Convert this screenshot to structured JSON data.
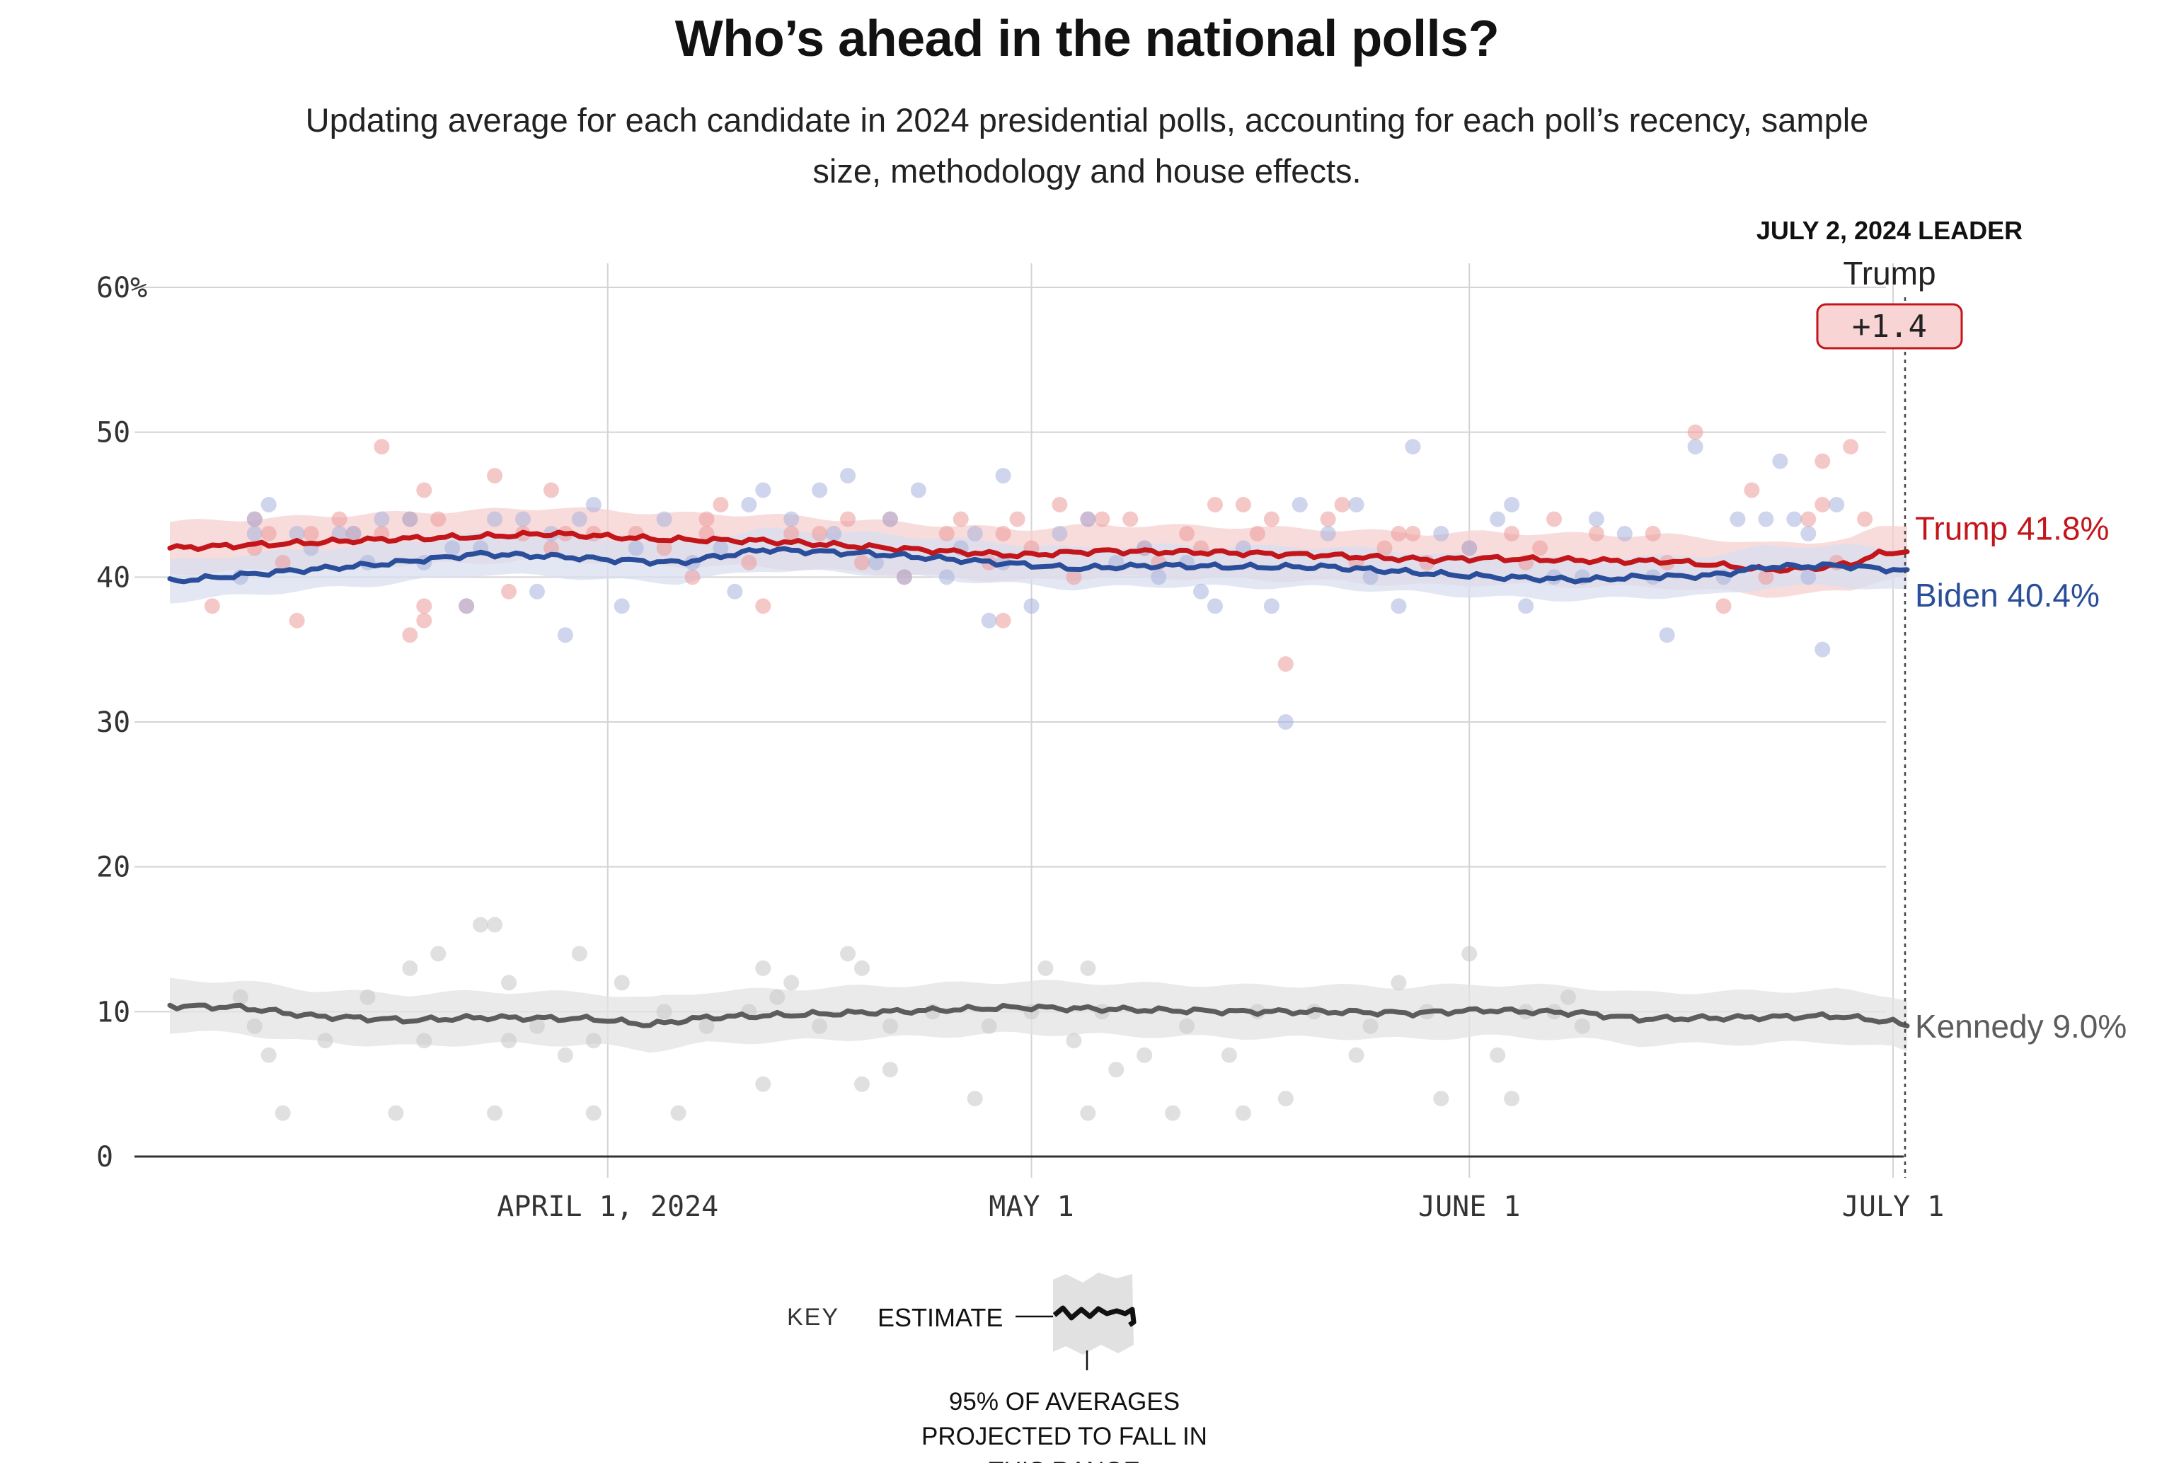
{
  "title": "Who’s ahead in the national polls?",
  "subtitle": "Updating average for each candidate in 2024 presidential polls, accounting for each poll’s recency, sample size, methodology and house effects.",
  "leader": {
    "heading": "JULY 2, 2024 LEADER",
    "name": "Trump",
    "margin": "+1.4",
    "color": "#c3161b"
  },
  "key": {
    "key_label": "KEY",
    "estimate_label": "ESTIMATE",
    "range_label_lines": [
      "95% OF AVERAGES",
      "PROJECTED TO FALL IN",
      "THIS RANGE"
    ]
  },
  "chart_data": {
    "type": "line",
    "title": "Who’s ahead in the national polls?",
    "ylim": [
      0,
      60
    ],
    "y_ticks": [
      0,
      10,
      20,
      30,
      40,
      50,
      60
    ],
    "y_tick_labels": [
      "0",
      "10",
      "20",
      "30",
      "40",
      "50",
      "60%"
    ],
    "x_start": "2024-03-01",
    "x_end": "2024-07-02",
    "x_ticks": [
      {
        "date": "2024-04-01",
        "label": "APRIL 1, 2024"
      },
      {
        "date": "2024-05-01",
        "label": "MAY 1"
      },
      {
        "date": "2024-06-01",
        "label": "JUNE 1"
      },
      {
        "date": "2024-07-01",
        "label": "JULY 1"
      }
    ],
    "series": [
      {
        "name": "Trump",
        "end_label": "Trump 41.8%",
        "color": "#c3161b",
        "band_color": "#f6d0d0",
        "dot_color": "#ec9a9a",
        "band_halfwidth": 1.8,
        "x_days": [
          0,
          8,
          15,
          22,
          27,
          35,
          42,
          51,
          60,
          66,
          74,
          82,
          89,
          93,
          98,
          103,
          106,
          110,
          113,
          116,
          119,
          121,
          123
        ],
        "values": [
          42.0,
          42.3,
          42.6,
          42.8,
          43.0,
          42.6,
          42.5,
          42.0,
          41.5,
          41.8,
          41.7,
          41.5,
          41.2,
          41.3,
          41.2,
          41.1,
          41.1,
          40.8,
          40.5,
          40.6,
          40.9,
          41.6,
          41.8
        ],
        "polls": [
          [
            34,
            38
          ],
          [
            37,
            44
          ],
          [
            37,
            42
          ],
          [
            38,
            43
          ],
          [
            39,
            41
          ],
          [
            40,
            37
          ],
          [
            41,
            43
          ],
          [
            43,
            44
          ],
          [
            44,
            43
          ],
          [
            46,
            43
          ],
          [
            46,
            49
          ],
          [
            48,
            36
          ],
          [
            48,
            44
          ],
          [
            49,
            46
          ],
          [
            49,
            38
          ],
          [
            49,
            37
          ],
          [
            50,
            44
          ],
          [
            52,
            38
          ],
          [
            54,
            47
          ],
          [
            55,
            39
          ],
          [
            56,
            43
          ],
          [
            58,
            46
          ],
          [
            58,
            42
          ],
          [
            59,
            43
          ],
          [
            61,
            43
          ],
          [
            64,
            43
          ],
          [
            66,
            42
          ],
          [
            68,
            40
          ],
          [
            69,
            44
          ],
          [
            69,
            43
          ],
          [
            70,
            45
          ],
          [
            72,
            41
          ],
          [
            73,
            38
          ],
          [
            75,
            43
          ],
          [
            77,
            43
          ],
          [
            79,
            44
          ],
          [
            80,
            41
          ],
          [
            82,
            44
          ],
          [
            83,
            40
          ],
          [
            86,
            43
          ],
          [
            87,
            44
          ],
          [
            89,
            41
          ],
          [
            90,
            43
          ],
          [
            90,
            37
          ],
          [
            91,
            44
          ],
          [
            92,
            42
          ],
          [
            94,
            45
          ],
          [
            95,
            40
          ],
          [
            96,
            44
          ],
          [
            97,
            44
          ],
          [
            99,
            44
          ],
          [
            100,
            42
          ],
          [
            101,
            41
          ],
          [
            103,
            43
          ],
          [
            104,
            42
          ],
          [
            105,
            45
          ],
          [
            107,
            45
          ],
          [
            108,
            43
          ],
          [
            109,
            44
          ],
          [
            110,
            34
          ],
          [
            113,
            44
          ],
          [
            114,
            45
          ],
          [
            115,
            41
          ],
          [
            117,
            42
          ],
          [
            118,
            43
          ],
          [
            119,
            43
          ],
          [
            120,
            41
          ],
          [
            123,
            42
          ],
          [
            126,
            43
          ],
          [
            127,
            41
          ],
          [
            128,
            42
          ],
          [
            129,
            44
          ],
          [
            132,
            43
          ],
          [
            136,
            43
          ],
          [
            137,
            41
          ],
          [
            139,
            50
          ],
          [
            141,
            38
          ],
          [
            143,
            46
          ],
          [
            144,
            40
          ],
          [
            147,
            44
          ],
          [
            148,
            48
          ],
          [
            148,
            45
          ],
          [
            149,
            41
          ],
          [
            150,
            49
          ],
          [
            151,
            44
          ]
        ]
      },
      {
        "name": "Biden",
        "end_label": "Biden 40.4%",
        "color": "#2a4e9a",
        "band_color": "#d9dff0",
        "dot_color": "#a7b3dc",
        "band_halfwidth": 1.4,
        "x_days": [
          0,
          7,
          15,
          22,
          25,
          28,
          31,
          36,
          42,
          50,
          57,
          60,
          64,
          70,
          76,
          82,
          90,
          94,
          100,
          104,
          109,
          113,
          118,
          121,
          123
        ],
        "values": [
          39.7,
          40.3,
          40.9,
          41.6,
          41.5,
          41.4,
          41.2,
          41.0,
          41.9,
          41.6,
          41.1,
          40.9,
          40.6,
          40.8,
          40.7,
          40.7,
          40.2,
          40.0,
          39.8,
          40.0,
          40.1,
          40.7,
          40.8,
          40.6,
          40.4
        ],
        "polls": [
          [
            36,
            40
          ],
          [
            37,
            44
          ],
          [
            37,
            43
          ],
          [
            38,
            45
          ],
          [
            40,
            43
          ],
          [
            41,
            42
          ],
          [
            43,
            43
          ],
          [
            44,
            43
          ],
          [
            45,
            41
          ],
          [
            46,
            44
          ],
          [
            48,
            44
          ],
          [
            49,
            41
          ],
          [
            51,
            42
          ],
          [
            52,
            38
          ],
          [
            53,
            42
          ],
          [
            54,
            44
          ],
          [
            56,
            44
          ],
          [
            57,
            39
          ],
          [
            58,
            43
          ],
          [
            59,
            36
          ],
          [
            60,
            44
          ],
          [
            61,
            45
          ],
          [
            63,
            38
          ],
          [
            64,
            42
          ],
          [
            66,
            44
          ],
          [
            68,
            41
          ],
          [
            70,
            42
          ],
          [
            71,
            39
          ],
          [
            72,
            45
          ],
          [
            73,
            46
          ],
          [
            75,
            44
          ],
          [
            77,
            46
          ],
          [
            78,
            43
          ],
          [
            79,
            47
          ],
          [
            81,
            41
          ],
          [
            82,
            44
          ],
          [
            83,
            40
          ],
          [
            84,
            46
          ],
          [
            86,
            40
          ],
          [
            87,
            42
          ],
          [
            88,
            43
          ],
          [
            89,
            37
          ],
          [
            90,
            41
          ],
          [
            90,
            47
          ],
          [
            92,
            38
          ],
          [
            94,
            43
          ],
          [
            96,
            44
          ],
          [
            98,
            41
          ],
          [
            100,
            42
          ],
          [
            101,
            40
          ],
          [
            103,
            41
          ],
          [
            104,
            39
          ],
          [
            105,
            38
          ],
          [
            107,
            42
          ],
          [
            109,
            38
          ],
          [
            110,
            30
          ],
          [
            111,
            45
          ],
          [
            113,
            43
          ],
          [
            115,
            45
          ],
          [
            116,
            40
          ],
          [
            118,
            38
          ],
          [
            119,
            49
          ],
          [
            121,
            43
          ],
          [
            123,
            42
          ],
          [
            125,
            44
          ],
          [
            126,
            45
          ],
          [
            127,
            38
          ],
          [
            129,
            40
          ],
          [
            131,
            40
          ],
          [
            132,
            44
          ],
          [
            134,
            43
          ],
          [
            136,
            40
          ],
          [
            137,
            36
          ],
          [
            139,
            49
          ],
          [
            141,
            40
          ],
          [
            142,
            44
          ],
          [
            144,
            44
          ],
          [
            145,
            48
          ],
          [
            146,
            44
          ],
          [
            147,
            40
          ],
          [
            147,
            43
          ],
          [
            148,
            35
          ],
          [
            149,
            45
          ]
        ]
      },
      {
        "name": "Kennedy",
        "end_label": "Kennedy 9.0%",
        "color": "#5c5c5c",
        "band_color": "#e3e3e3",
        "dot_color": "#c7c7c7",
        "band_halfwidth": 1.8,
        "x_days": [
          0,
          5,
          10,
          17,
          22,
          30,
          34,
          38,
          48,
          60,
          70,
          76,
          82,
          88,
          93,
          100,
          104,
          112,
          118,
          122,
          123
        ],
        "values": [
          10.4,
          10.3,
          9.7,
          9.4,
          9.6,
          9.5,
          9.1,
          9.6,
          9.9,
          10.3,
          10.1,
          10.0,
          10.0,
          9.9,
          10.1,
          9.9,
          9.5,
          9.6,
          9.7,
          9.3,
          9.0
        ],
        "polls": [
          [
            36,
            11
          ],
          [
            37,
            9
          ],
          [
            38,
            7
          ],
          [
            39,
            3
          ],
          [
            42,
            8
          ],
          [
            45,
            11
          ],
          [
            47,
            3
          ],
          [
            48,
            13
          ],
          [
            49,
            8
          ],
          [
            50,
            14
          ],
          [
            53,
            16
          ],
          [
            54,
            3
          ],
          [
            54,
            16
          ],
          [
            55,
            8
          ],
          [
            55,
            12
          ],
          [
            57,
            9
          ],
          [
            59,
            7
          ],
          [
            60,
            14
          ],
          [
            61,
            8
          ],
          [
            61,
            3
          ],
          [
            63,
            12
          ],
          [
            66,
            10
          ],
          [
            67,
            3
          ],
          [
            69,
            9
          ],
          [
            72,
            10
          ],
          [
            73,
            5
          ],
          [
            73,
            13
          ],
          [
            74,
            11
          ],
          [
            75,
            12
          ],
          [
            77,
            9
          ],
          [
            79,
            14
          ],
          [
            80,
            5
          ],
          [
            80,
            13
          ],
          [
            82,
            9
          ],
          [
            82,
            6
          ],
          [
            85,
            10
          ],
          [
            88,
            4
          ],
          [
            89,
            9
          ],
          [
            92,
            10
          ],
          [
            93,
            13
          ],
          [
            95,
            8
          ],
          [
            96,
            3
          ],
          [
            96,
            13
          ],
          [
            97,
            10
          ],
          [
            98,
            6
          ],
          [
            100,
            7
          ],
          [
            102,
            3
          ],
          [
            103,
            9
          ],
          [
            106,
            7
          ],
          [
            107,
            3
          ],
          [
            108,
            10
          ],
          [
            110,
            4
          ],
          [
            112,
            10
          ],
          [
            115,
            7
          ],
          [
            116,
            9
          ],
          [
            118,
            12
          ],
          [
            120,
            10
          ],
          [
            121,
            4
          ],
          [
            123,
            14
          ],
          [
            125,
            7
          ],
          [
            126,
            4
          ],
          [
            127,
            10
          ],
          [
            129,
            10
          ],
          [
            130,
            11
          ],
          [
            131,
            9
          ]
        ]
      }
    ]
  }
}
